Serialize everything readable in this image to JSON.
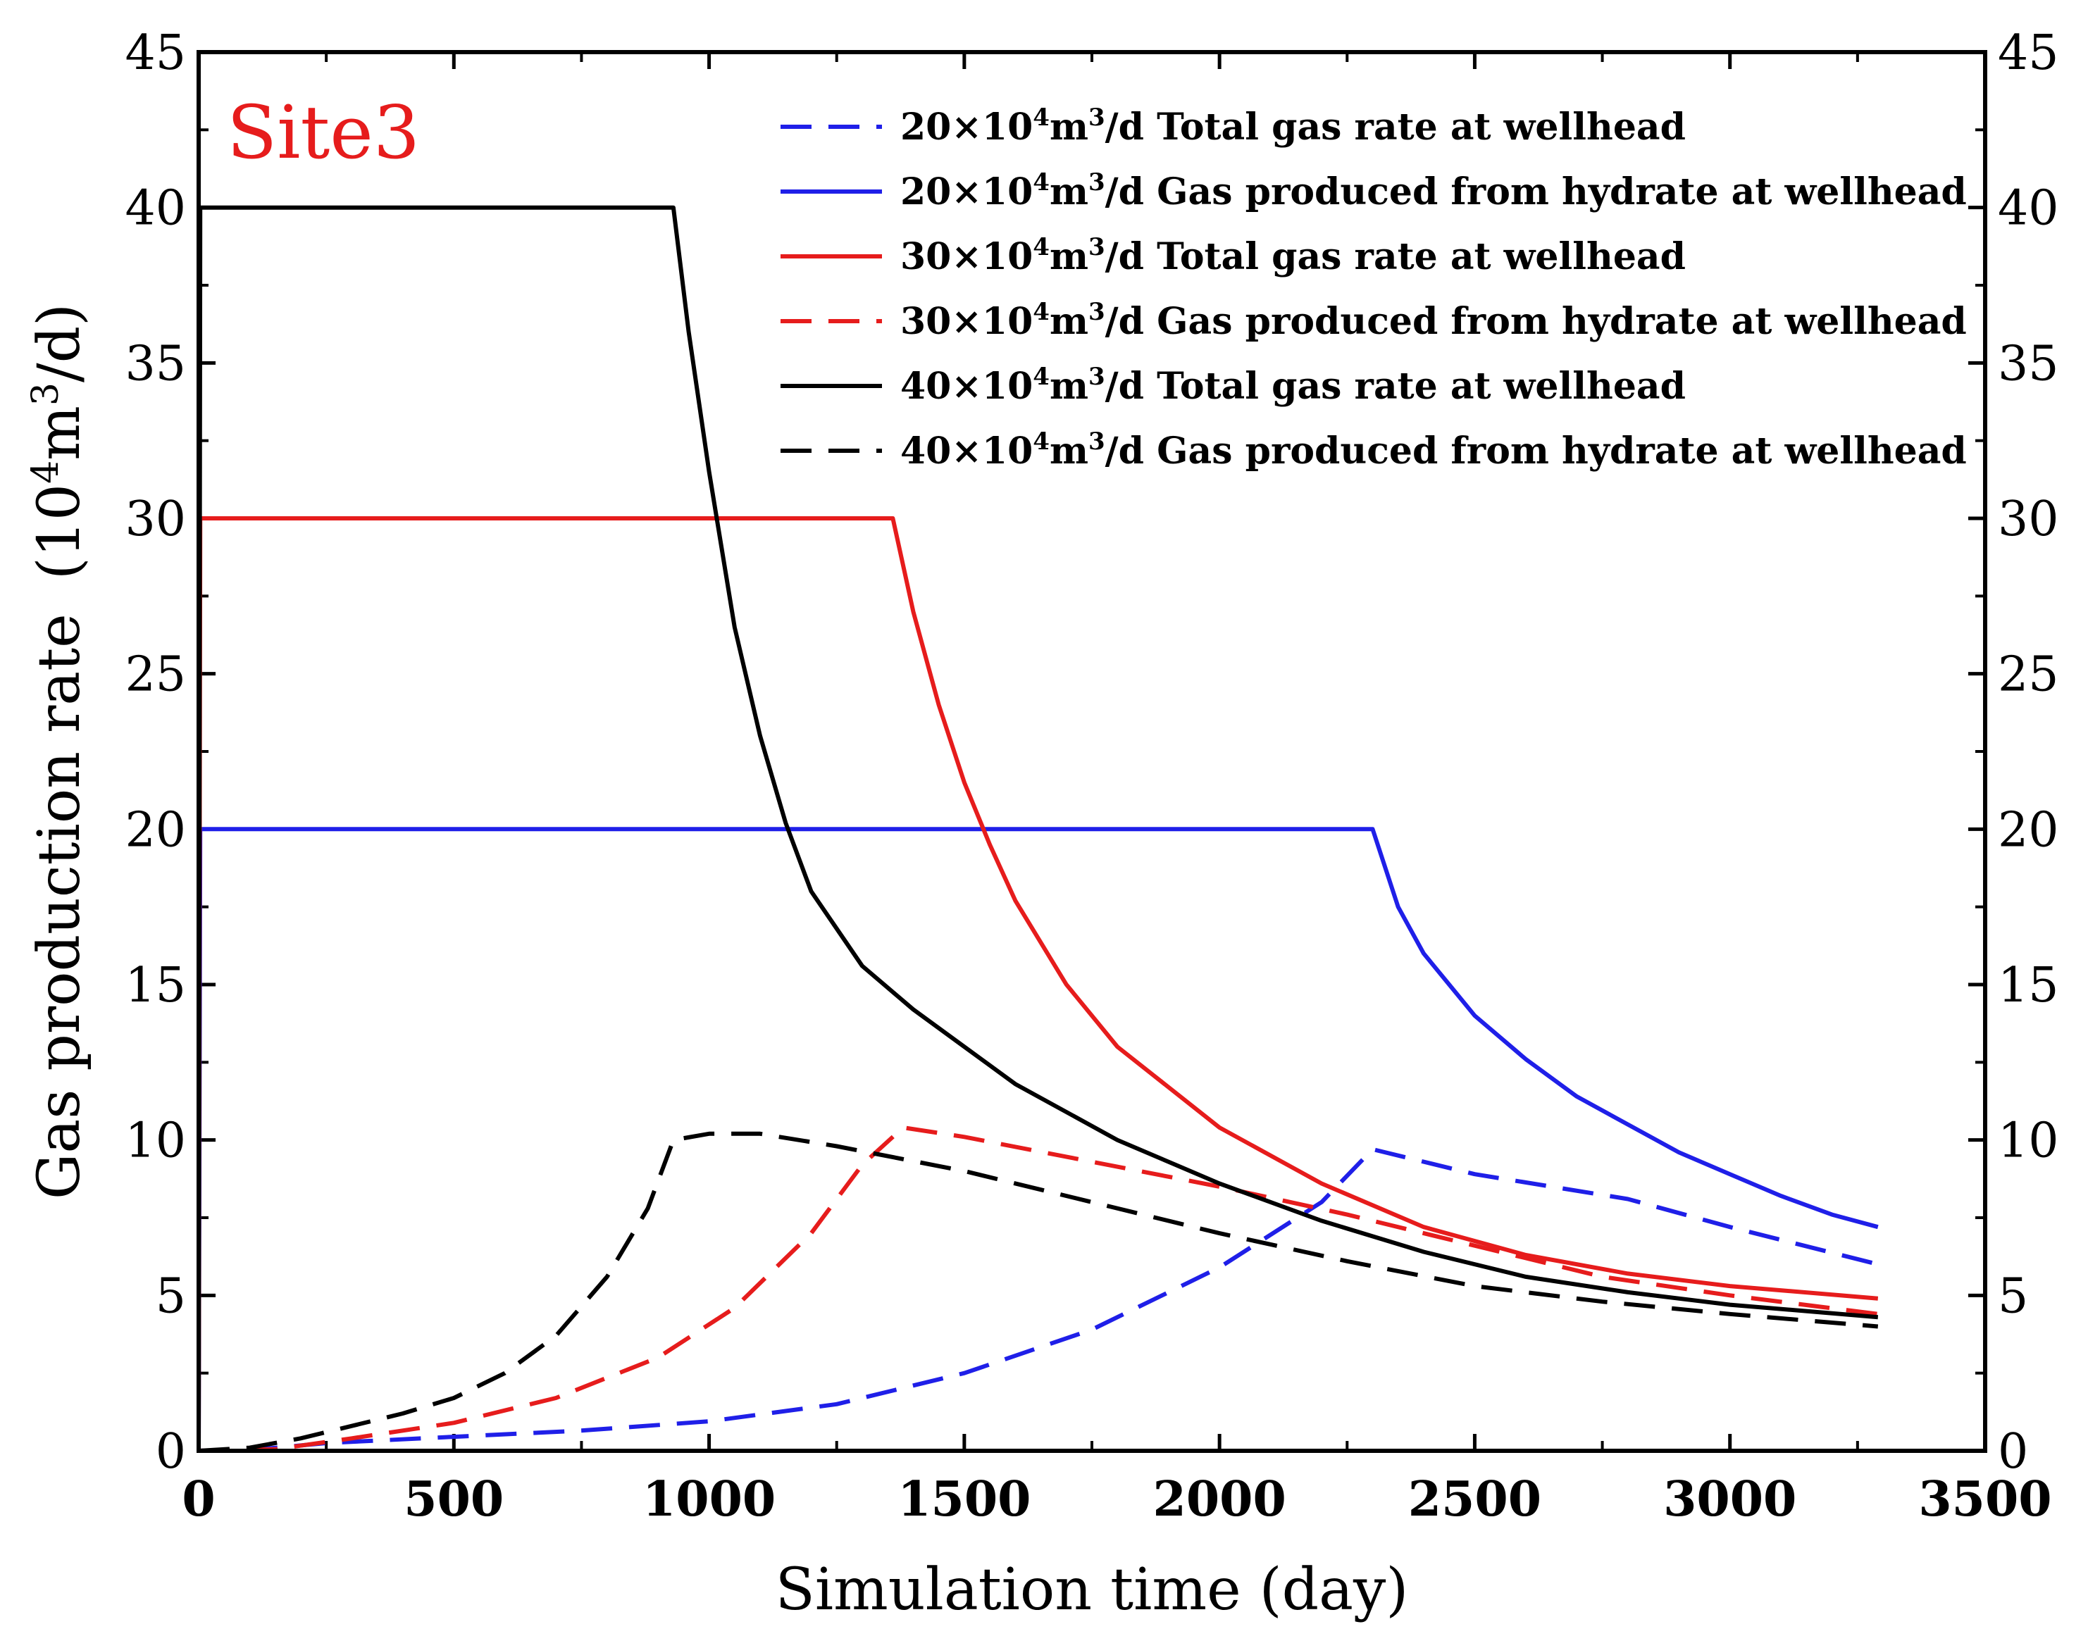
{
  "chart_data": {
    "type": "line",
    "annotation": "Site3",
    "xlabel": "Simulation time  (day)",
    "ylabel": "Gas production rate",
    "ylabel_unit": [
      "(10",
      "4",
      "m",
      "3",
      "/d)"
    ],
    "xlim": [
      0,
      3500
    ],
    "ylim": [
      0,
      45
    ],
    "x_ticks": [
      "0",
      "500",
      "1000",
      "1500",
      "2000",
      "2500",
      "3000",
      "3500"
    ],
    "y_ticks": [
      "0",
      "5",
      "10",
      "15",
      "20",
      "25",
      "30",
      "35",
      "40",
      "45"
    ],
    "legend_position": "top-right",
    "series": [
      {
        "label_parts": [
          "20×10",
          "4",
          "m",
          "3",
          "/d Total gas rate at wellhead"
        ],
        "color": "#1f1fe8",
        "style": "dashed",
        "x": [
          0,
          120,
          250,
          500,
          750,
          1000,
          1250,
          1500,
          1750,
          2000,
          2200,
          2300,
          2500,
          2800,
          3000,
          3290
        ],
        "y": [
          0,
          0.05,
          0.25,
          0.45,
          0.65,
          0.95,
          1.5,
          2.5,
          3.9,
          5.9,
          8.0,
          9.7,
          8.9,
          8.1,
          7.2,
          6.0
        ]
      },
      {
        "label_parts": [
          "20×10",
          "4",
          "m",
          "3",
          "/d Gas produced from hydrate at wellhead"
        ],
        "color": "#1f1fe8",
        "style": "solid",
        "x": [
          0,
          3,
          2300,
          2350,
          2400,
          2500,
          2600,
          2700,
          2800,
          2900,
          3000,
          3100,
          3200,
          3290
        ],
        "y": [
          0,
          20,
          20,
          17.5,
          16.0,
          14.0,
          12.6,
          11.4,
          10.5,
          9.6,
          8.9,
          8.2,
          7.6,
          7.2
        ]
      },
      {
        "label_parts": [
          "30×10",
          "4",
          "m",
          "3",
          "/d Total gas rate at wellhead"
        ],
        "color": "#e61c1c",
        "style": "solid",
        "x": [
          0,
          3,
          1360,
          1400,
          1450,
          1500,
          1550,
          1600,
          1700,
          1800,
          2000,
          2200,
          2400,
          2600,
          2800,
          3000,
          3290
        ],
        "y": [
          0,
          30,
          30,
          27.0,
          24.0,
          21.5,
          19.5,
          17.7,
          15.0,
          13.0,
          10.4,
          8.6,
          7.2,
          6.3,
          5.7,
          5.3,
          4.9
        ]
      },
      {
        "label_parts": [
          "30×10",
          "4",
          "m",
          "3",
          "/d Gas produced from hydrate at wellhead"
        ],
        "color": "#e61c1c",
        "style": "dashed",
        "x": [
          0,
          150,
          300,
          500,
          700,
          900,
          1050,
          1200,
          1300,
          1380,
          1500,
          1750,
          2000,
          2250,
          2500,
          2750,
          3000,
          3290
        ],
        "y": [
          0,
          0.05,
          0.4,
          0.9,
          1.7,
          3.0,
          4.6,
          7.0,
          9.2,
          10.4,
          10.1,
          9.3,
          8.5,
          7.6,
          6.6,
          5.6,
          5.0,
          4.4
        ]
      },
      {
        "label_parts": [
          "40×10",
          "4",
          "m",
          "3",
          "/d Total gas rate at wellhead"
        ],
        "color": "#000000",
        "style": "solid",
        "x": [
          0,
          3,
          930,
          960,
          1000,
          1050,
          1100,
          1150,
          1200,
          1300,
          1400,
          1500,
          1600,
          1800,
          2000,
          2200,
          2400,
          2600,
          2800,
          3000,
          3290
        ],
        "y": [
          0,
          40,
          40,
          36.0,
          31.5,
          26.5,
          23.0,
          20.2,
          18.0,
          15.6,
          14.2,
          13.0,
          11.8,
          10.0,
          8.6,
          7.4,
          6.4,
          5.6,
          5.1,
          4.7,
          4.3
        ]
      },
      {
        "label_parts": [
          "40×10",
          "4",
          "m",
          "3",
          "/d Gas produced from hydrate at wellhead"
        ],
        "color": "#000000",
        "style": "dashed",
        "x": [
          0,
          100,
          200,
          300,
          400,
          500,
          600,
          700,
          800,
          880,
          930,
          1000,
          1100,
          1250,
          1500,
          1750,
          2000,
          2250,
          2500,
          2750,
          3000,
          3290
        ],
        "y": [
          0,
          0.1,
          0.4,
          0.8,
          1.2,
          1.7,
          2.5,
          3.7,
          5.6,
          7.8,
          10.0,
          10.2,
          10.2,
          9.8,
          9.0,
          8.0,
          7.0,
          6.1,
          5.3,
          4.8,
          4.4,
          4.0
        ]
      }
    ]
  }
}
